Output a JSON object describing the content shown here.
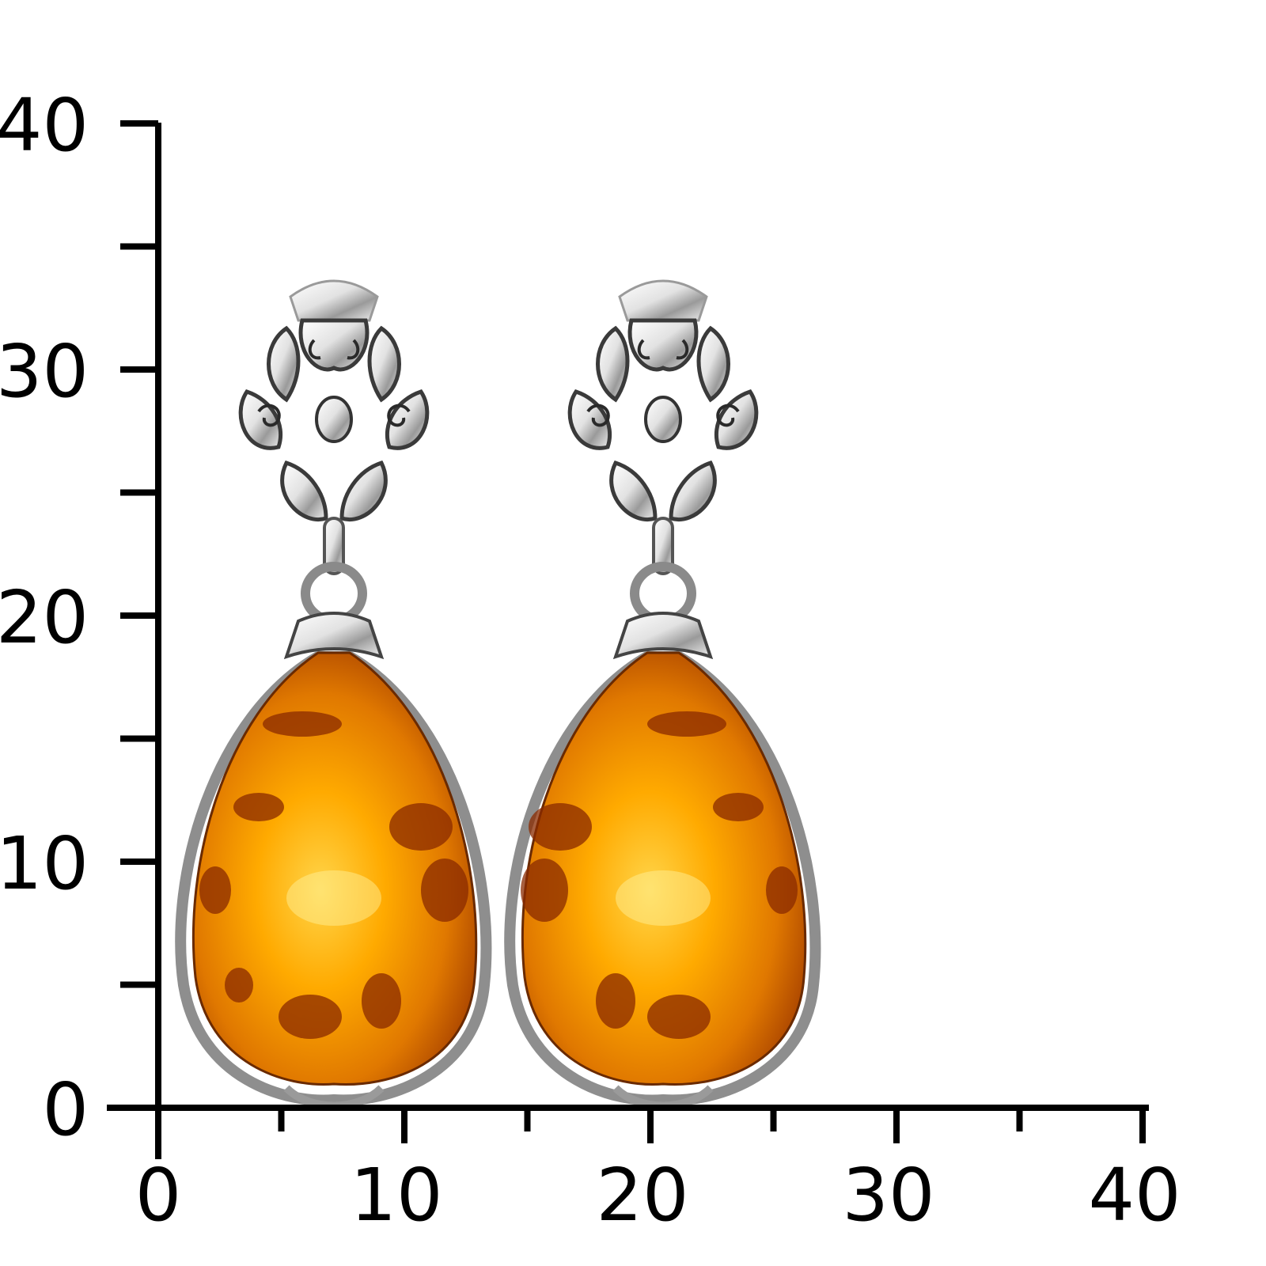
{
  "ruler": {
    "unit_step": 10,
    "x_labels": [
      "0",
      "10",
      "20",
      "30",
      "40"
    ],
    "y_labels": [
      "0",
      "10",
      "20",
      "30",
      "40"
    ],
    "minor_step": 5,
    "color": "#000000"
  },
  "photo": {
    "subject": "pair of silver drop earrings with cognac amber",
    "colors": {
      "silver": "#d9d9d9",
      "silver_dark": "#4a4a4a",
      "amber_light": "#ffb300",
      "amber_mid": "#e88a00",
      "amber_dark": "#8a2a00"
    },
    "earrings": [
      {
        "name": "left",
        "stud_x": 8,
        "stud_y": 34,
        "drop_bottom_y": 1
      },
      {
        "name": "right",
        "stud_x": 21,
        "stud_y": 34,
        "drop_bottom_y": 1
      }
    ]
  }
}
